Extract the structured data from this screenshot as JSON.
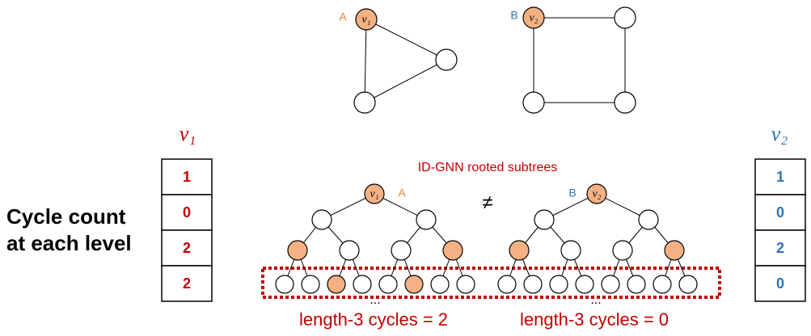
{
  "graphs": [
    {
      "label": "A",
      "node": "v₁"
    },
    {
      "label": "B",
      "node": "v₂"
    }
  ],
  "left_column": {
    "header": "v₁",
    "values": [
      1,
      0,
      2,
      2
    ]
  },
  "right_column": {
    "header": "v₂",
    "values": [
      1,
      0,
      2,
      0
    ]
  },
  "side_label": [
    "Cycle count",
    "at each level"
  ],
  "subtrees": {
    "title": "ID-GNN rooted subtrees",
    "relation": "≠",
    "trees": [
      {
        "label": "A",
        "root": "v₁",
        "ellipsis": "...",
        "caption": "length-3 cycles = 2"
      },
      {
        "label": "B",
        "root": "v₂",
        "ellipsis": "...",
        "caption": "length-3 cycles = 0"
      }
    ]
  }
}
